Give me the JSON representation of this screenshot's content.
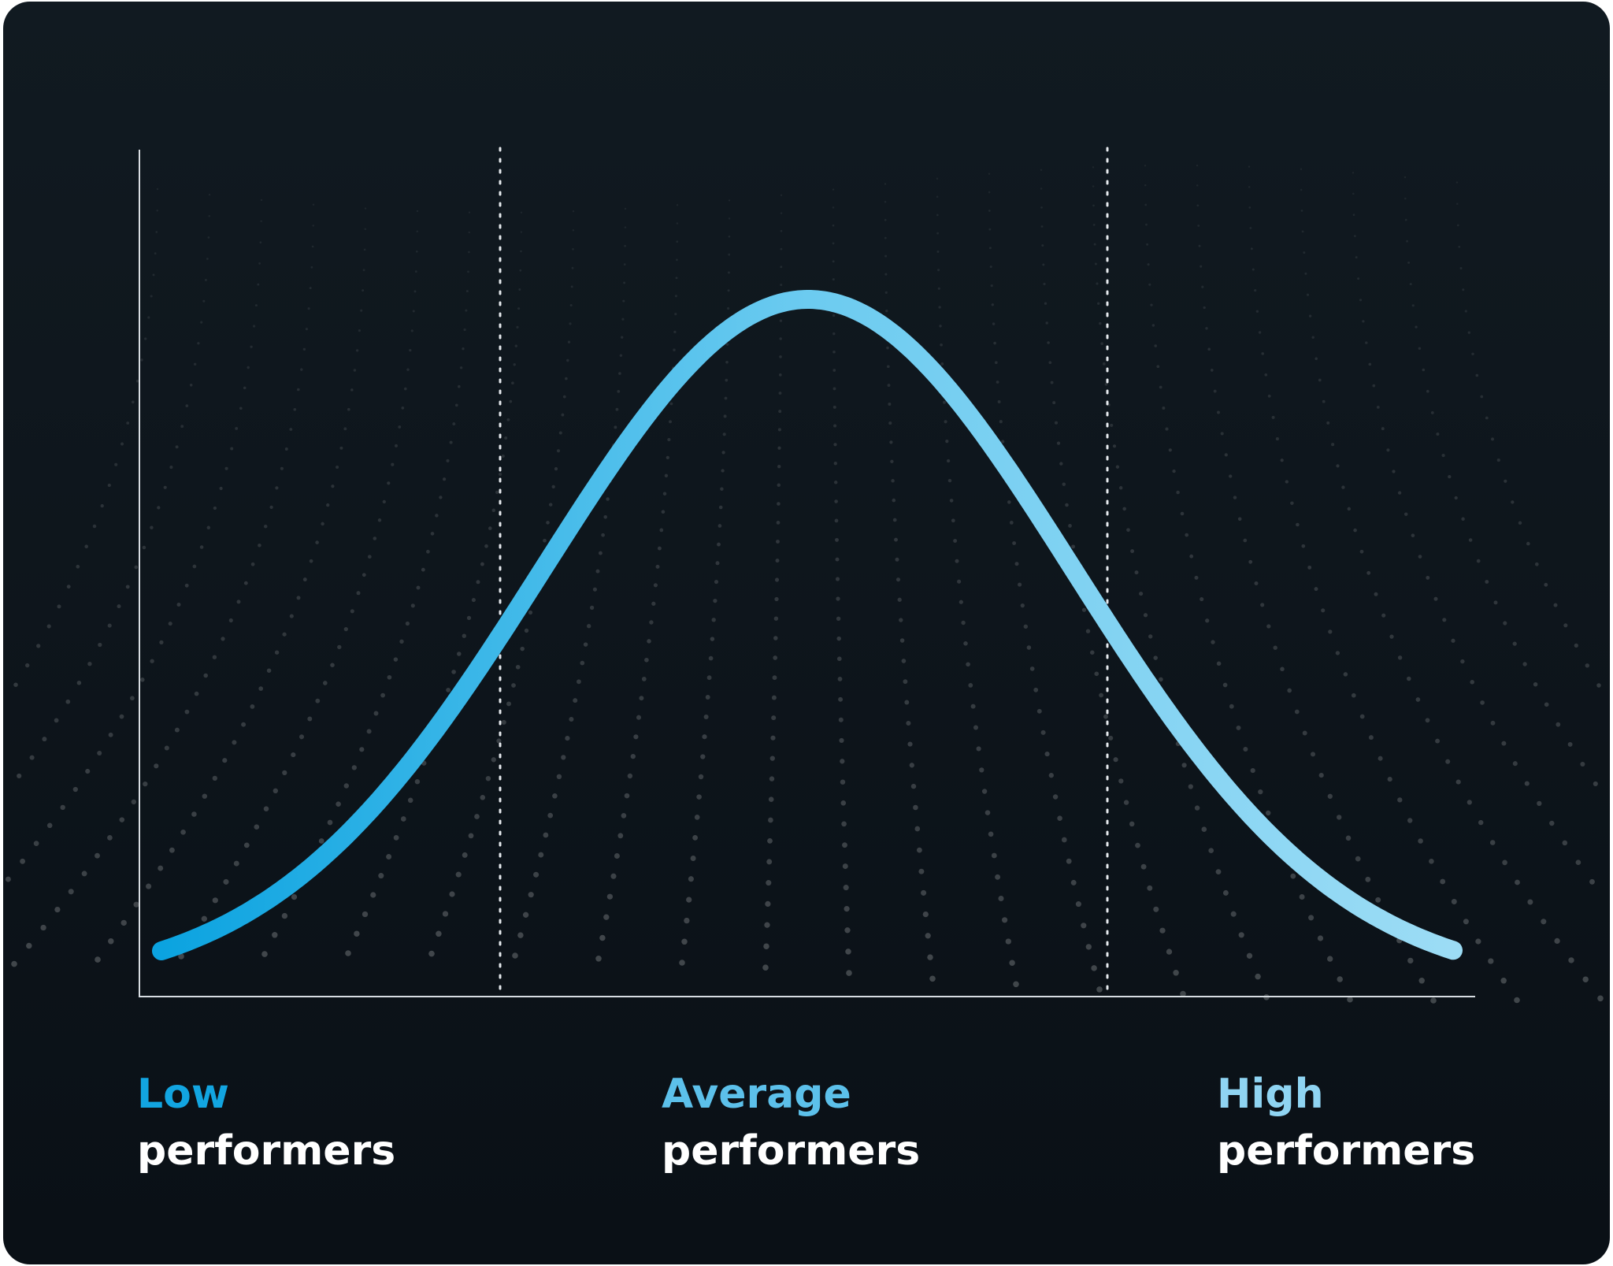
{
  "labels": [
    {
      "group": "Low",
      "text": "performers"
    },
    {
      "group": "Average",
      "text": "performers"
    },
    {
      "group": "High",
      "text": "performers"
    }
  ]
}
